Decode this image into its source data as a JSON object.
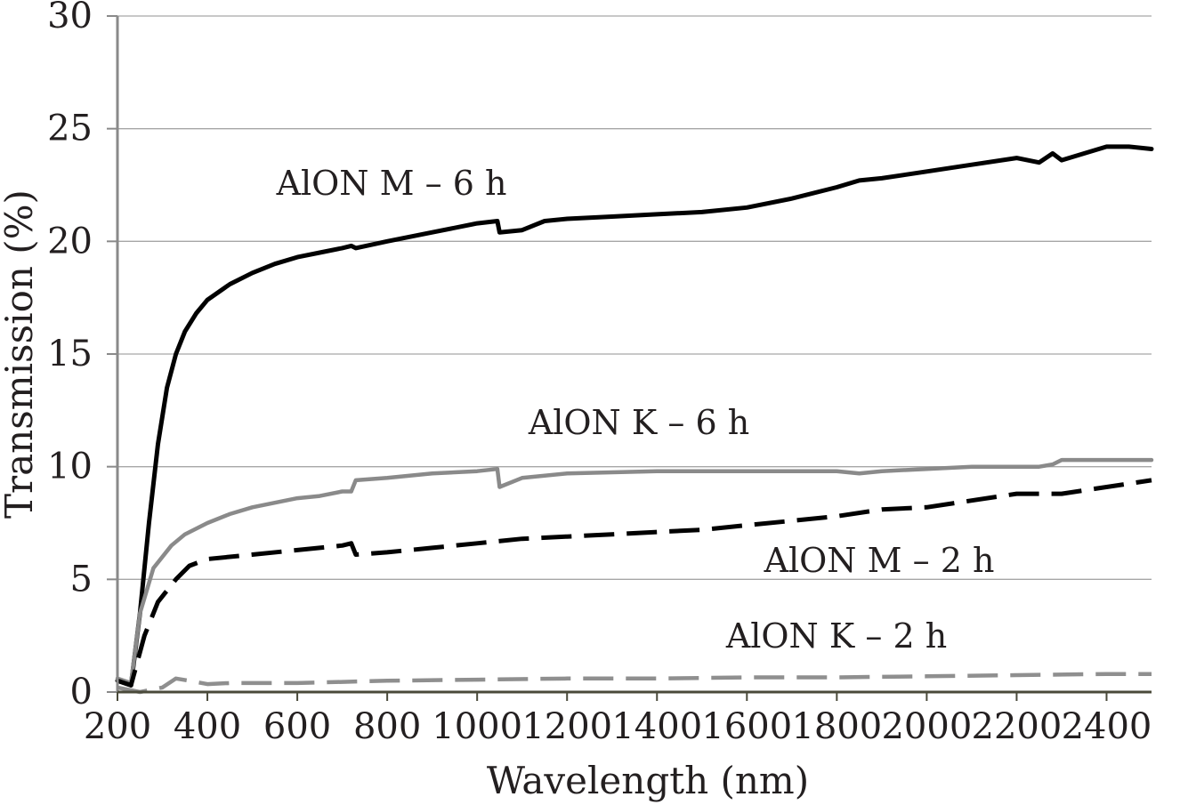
{
  "chart_data": {
    "type": "line",
    "xlabel": "Wavelength (nm)",
    "ylabel": "Transmission (%)",
    "xlim": [
      200,
      2500
    ],
    "ylim": [
      0,
      30
    ],
    "x_ticks": [
      "200",
      "400",
      "600",
      "800",
      "1000",
      "1200",
      "1400",
      "1600",
      "1800",
      "2000",
      "2200",
      "2400"
    ],
    "y_ticks": [
      "0",
      "5",
      "10",
      "15",
      "20",
      "25",
      "30"
    ],
    "grid": true,
    "series": [
      {
        "name": "AlON M – 6 h",
        "color": "#000000",
        "style": "solid",
        "x": [
          200,
          230,
          250,
          270,
          290,
          310,
          330,
          350,
          375,
          400,
          450,
          500,
          550,
          600,
          650,
          700,
          720,
          730,
          800,
          900,
          1000,
          1045,
          1050,
          1100,
          1150,
          1200,
          1300,
          1400,
          1500,
          1600,
          1700,
          1800,
          1850,
          1900,
          2000,
          2100,
          2200,
          2250,
          2280,
          2300,
          2350,
          2400,
          2450,
          2500
        ],
        "y": [
          0.5,
          0.3,
          3.5,
          7.5,
          11,
          13.5,
          15,
          16,
          16.8,
          17.4,
          18.1,
          18.6,
          19.0,
          19.3,
          19.5,
          19.7,
          19.8,
          19.7,
          20.0,
          20.4,
          20.8,
          20.9,
          20.4,
          20.5,
          20.9,
          21.0,
          21.1,
          21.2,
          21.3,
          21.5,
          21.9,
          22.4,
          22.7,
          22.8,
          23.1,
          23.4,
          23.7,
          23.5,
          23.9,
          23.6,
          23.9,
          24.2,
          24.2,
          24.1
        ]
      },
      {
        "name": "AlON K – 6 h",
        "color": "#8a8a8a",
        "style": "solid",
        "x": [
          200,
          230,
          250,
          280,
          320,
          350,
          400,
          450,
          500,
          550,
          600,
          650,
          700,
          720,
          730,
          800,
          900,
          1000,
          1045,
          1050,
          1100,
          1200,
          1400,
          1600,
          1800,
          1850,
          1900,
          2000,
          2100,
          2180,
          2250,
          2280,
          2300,
          2400,
          2500
        ],
        "y": [
          0.6,
          0.4,
          3.5,
          5.5,
          6.5,
          7.0,
          7.5,
          7.9,
          8.2,
          8.4,
          8.6,
          8.7,
          8.9,
          8.9,
          9.4,
          9.5,
          9.7,
          9.8,
          9.9,
          9.1,
          9.5,
          9.7,
          9.8,
          9.8,
          9.8,
          9.7,
          9.8,
          9.9,
          10.0,
          10.0,
          10.0,
          10.1,
          10.3,
          10.3,
          10.3
        ]
      },
      {
        "name": "AlON M – 2 h",
        "color": "#000000",
        "style": "dashed",
        "x": [
          200,
          230,
          260,
          290,
          330,
          360,
          400,
          500,
          600,
          700,
          720,
          730,
          800,
          900,
          1000,
          1100,
          1200,
          1300,
          1400,
          1500,
          1600,
          1700,
          1800,
          1900,
          2000,
          2100,
          2200,
          2300,
          2400,
          2500
        ],
        "y": [
          0.5,
          0.3,
          2.5,
          4.0,
          5.0,
          5.6,
          5.9,
          6.1,
          6.3,
          6.5,
          6.6,
          6.1,
          6.2,
          6.4,
          6.6,
          6.8,
          6.9,
          7.0,
          7.1,
          7.2,
          7.4,
          7.6,
          7.8,
          8.1,
          8.2,
          8.5,
          8.8,
          8.8,
          9.1,
          9.4
        ]
      },
      {
        "name": "AlON K – 2 h",
        "color": "#8f8f8f",
        "style": "dashed",
        "x": [
          200,
          250,
          300,
          330,
          360,
          400,
          450,
          600,
          800,
          1000,
          1200,
          1400,
          1600,
          1800,
          2000,
          2200,
          2400,
          2500
        ],
        "y": [
          0.2,
          0.0,
          0.2,
          0.6,
          0.5,
          0.35,
          0.4,
          0.4,
          0.5,
          0.55,
          0.6,
          0.6,
          0.65,
          0.65,
          0.7,
          0.75,
          0.8,
          0.8
        ]
      }
    ]
  }
}
